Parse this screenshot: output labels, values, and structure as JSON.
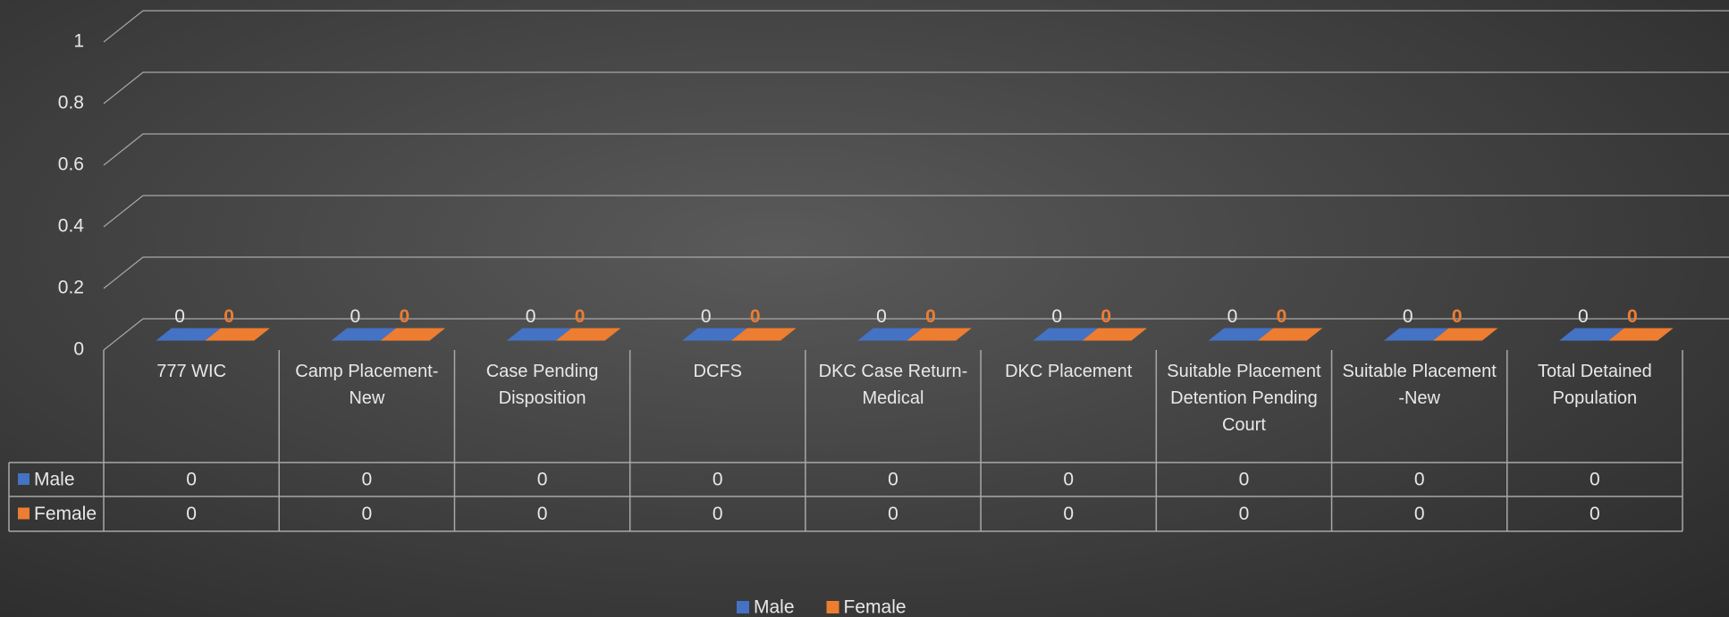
{
  "chart_data": {
    "type": "bar3d",
    "categories": [
      "777 WIC",
      "Camp Placement-New",
      "Case Pending Disposition",
      "DCFS",
      "DKC Case Return-Medical",
      "DKC Placement",
      "Suitable Placement Detention Pending Court",
      "Suitable Placement -New",
      "Total Detained Population"
    ],
    "series": [
      {
        "name": "Male",
        "color": "#4472c4",
        "values": [
          0,
          0,
          0,
          0,
          0,
          0,
          0,
          0,
          0
        ]
      },
      {
        "name": "Female",
        "color": "#ed7d31",
        "values": [
          0,
          0,
          0,
          0,
          0,
          0,
          0,
          0,
          0
        ]
      }
    ],
    "ylim": [
      0,
      1
    ],
    "yticks": [
      0,
      0.2,
      0.4,
      0.6,
      0.8,
      1
    ],
    "grid": true,
    "data_table": true,
    "legend": "bottom"
  }
}
